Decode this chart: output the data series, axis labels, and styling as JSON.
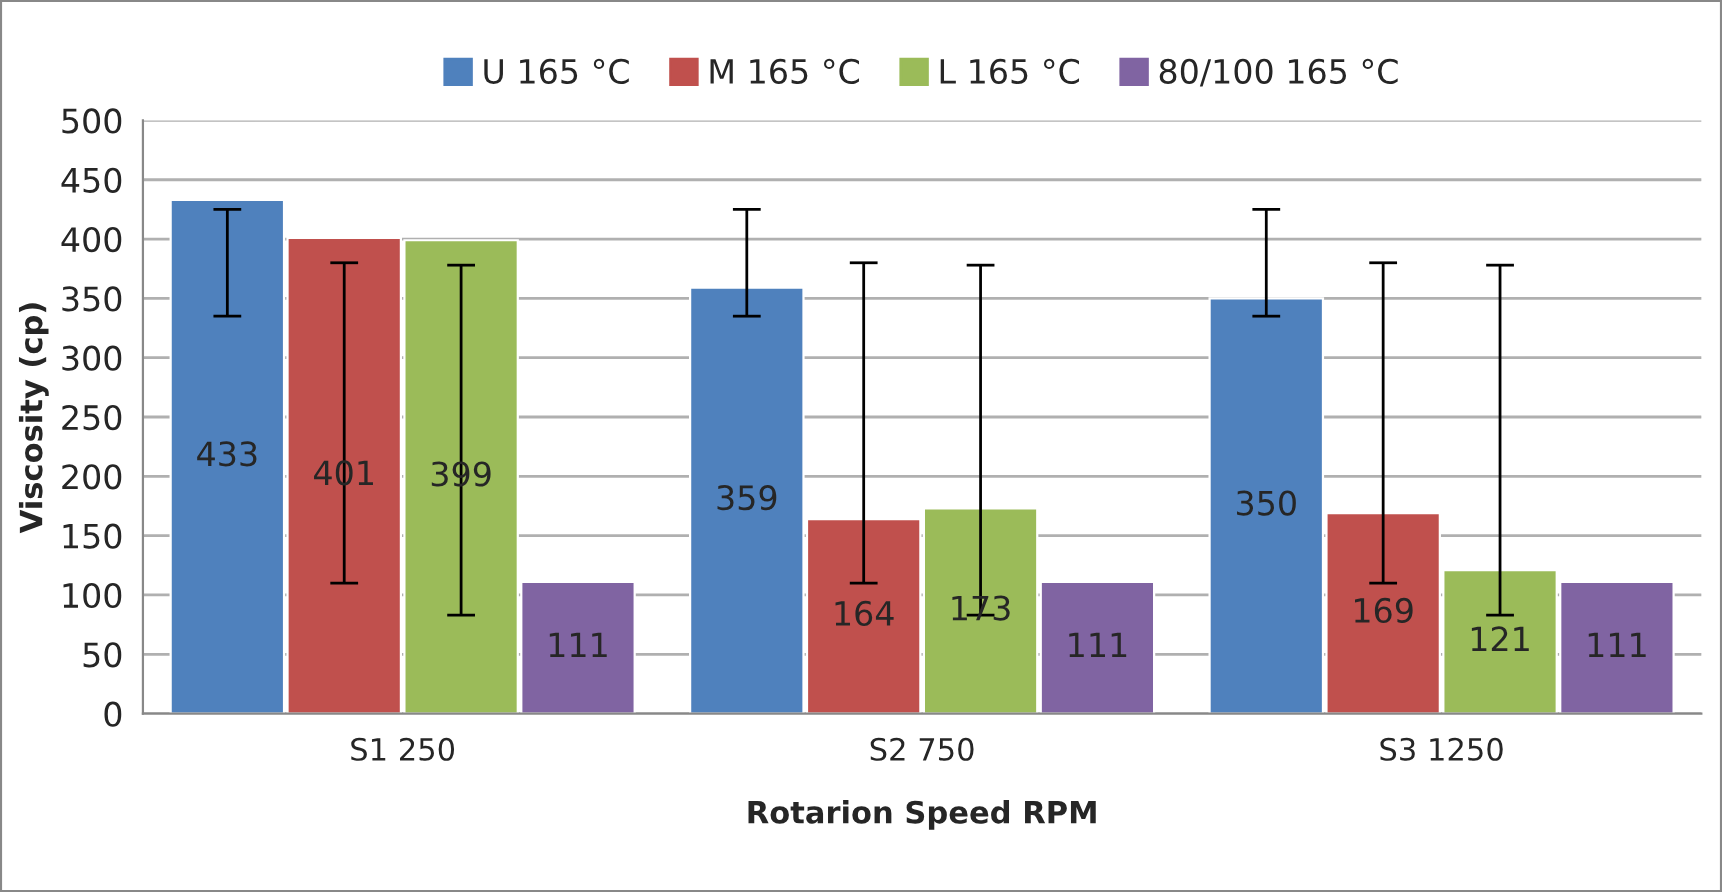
{
  "chart_data": {
    "type": "bar",
    "xlabel": "Rotarion Speed RPM",
    "ylabel": "Viscosity (cp)",
    "categories": [
      "S1 250",
      "S2 750",
      "S3 1250"
    ],
    "series": [
      {
        "name": "U 165 °C",
        "color": "#4f81bd",
        "values": [
          433,
          359,
          350
        ],
        "errors": [
          [
            335,
            425
          ],
          [
            335,
            425
          ],
          [
            335,
            425
          ]
        ]
      },
      {
        "name": "M 165 °C",
        "color": "#c0504d",
        "values": [
          401,
          164,
          169
        ],
        "errors": [
          [
            110,
            380
          ],
          [
            110,
            380
          ],
          [
            110,
            380
          ]
        ]
      },
      {
        "name": "L 165 °C",
        "color": "#9bbb59",
        "values": [
          399,
          173,
          121
        ],
        "errors": [
          [
            83,
            378
          ],
          [
            83,
            378
          ],
          [
            83,
            378
          ]
        ]
      },
      {
        "name": "80/100 165 °C",
        "color": "#8064a2",
        "values": [
          111,
          111,
          111
        ]
      }
    ],
    "ylim": [
      0,
      500
    ],
    "yticks": [
      0,
      50,
      100,
      150,
      200,
      250,
      300,
      350,
      400,
      450,
      500
    ],
    "grid": "y",
    "legend": "top",
    "data_labels": true
  }
}
